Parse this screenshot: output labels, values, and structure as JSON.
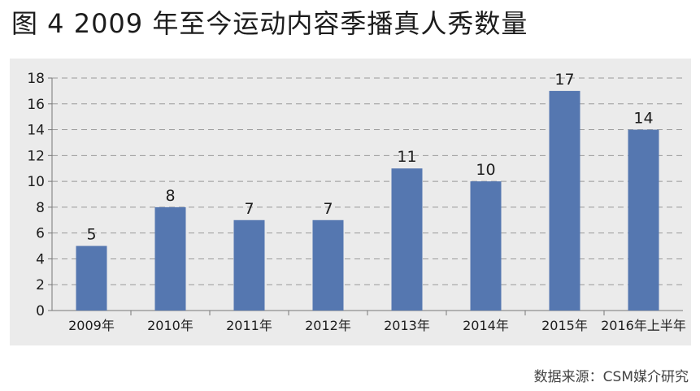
{
  "figure": {
    "title": "图 4 2009 年至今运动内容季播真人秀数量",
    "source": "数据来源：CSM媒介研究"
  },
  "colors": {
    "bar": "#5577b0",
    "panel_background": "#ebebeb",
    "gridline": "#9a9a9a",
    "axis": "#777777",
    "text": "#1c1c1c"
  },
  "chart_data": {
    "type": "bar",
    "title": "",
    "xlabel": "",
    "ylabel": "",
    "categories": [
      "2009年",
      "2010年",
      "2011年",
      "2012年",
      "2013年",
      "2014年",
      "2015年",
      "2016年上半年"
    ],
    "values": [
      5,
      8,
      7,
      7,
      11,
      10,
      17,
      14
    ],
    "data_labels": [
      "5",
      "8",
      "7",
      "7",
      "11",
      "10",
      "17",
      "14"
    ],
    "ylim": [
      0,
      18
    ],
    "yticks": [
      0,
      2,
      4,
      6,
      8,
      10,
      12,
      14,
      16,
      18
    ],
    "grid": "horizontal dashed",
    "legend": "none"
  }
}
